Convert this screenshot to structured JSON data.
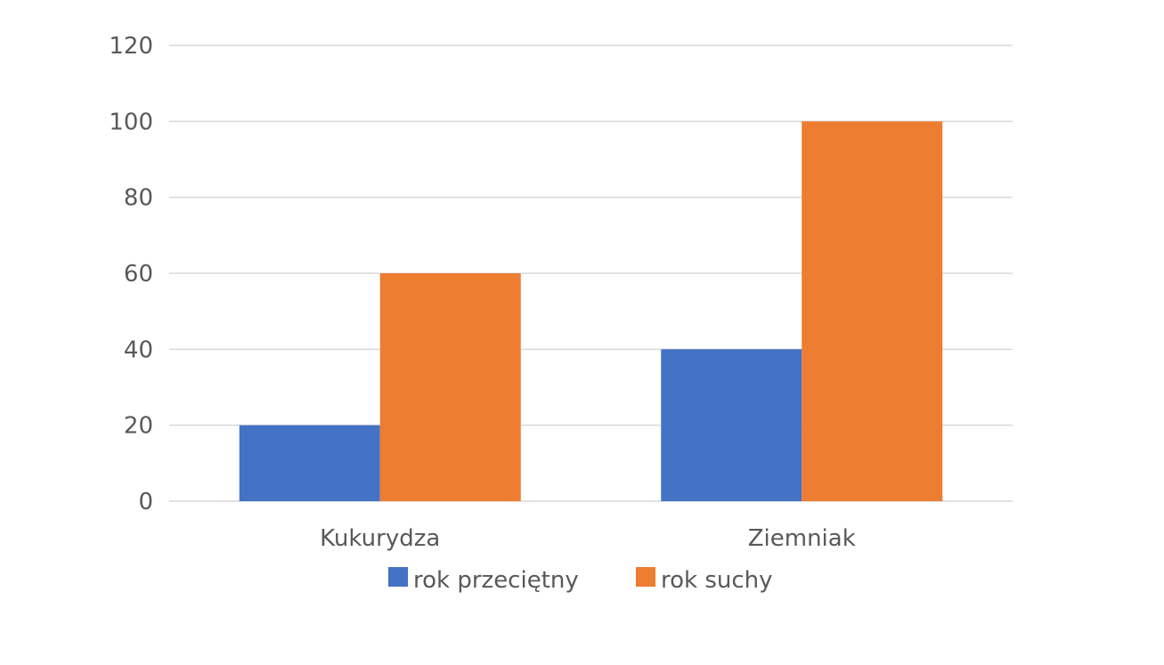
{
  "chart_data": {
    "type": "bar",
    "categories": [
      "Kukurydza",
      "Ziemniak"
    ],
    "series": [
      {
        "name": "rok przeciętny",
        "values": [
          20,
          40
        ],
        "color": "#4472C4"
      },
      {
        "name": "rok suchy",
        "values": [
          60,
          100
        ],
        "color": "#ED7D31"
      }
    ],
    "ylim": [
      0,
      120
    ],
    "yticks": [
      0,
      20,
      40,
      60,
      80,
      100,
      120
    ],
    "grid": true,
    "legend_position": "bottom",
    "title": "",
    "xlabel": "",
    "ylabel": "",
    "gridline_color": "#D9D9D9"
  }
}
